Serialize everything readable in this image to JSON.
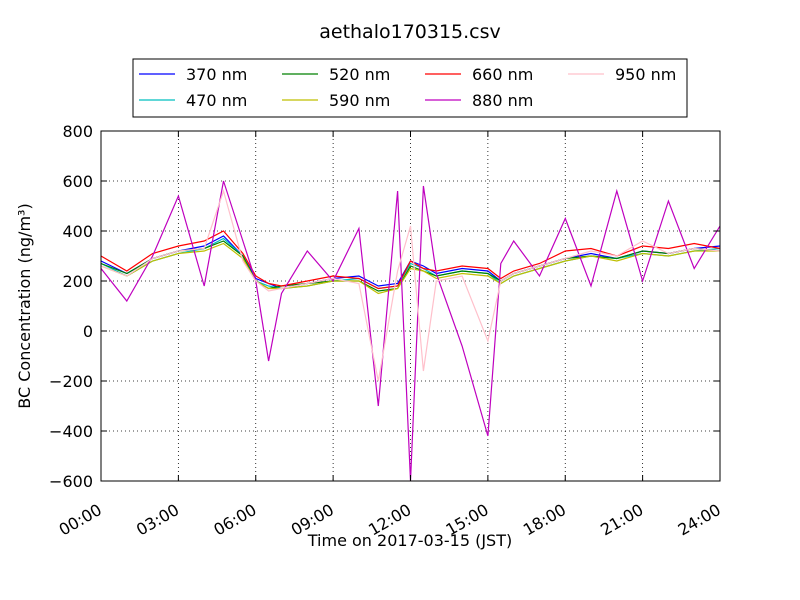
{
  "chart_data": {
    "type": "line",
    "title": "aethalo170315.csv",
    "xlabel": "Time on 2017-03-15 (JST)",
    "ylabel": "BC Concentration (ng/m³)",
    "xlim": [
      0,
      24
    ],
    "ylim": [
      -600,
      800
    ],
    "x_tick_values": [
      0,
      3,
      6,
      9,
      12,
      15,
      18,
      21,
      24
    ],
    "x_tick_labels": [
      "00:00",
      "03:00",
      "06:00",
      "09:00",
      "12:00",
      "15:00",
      "18:00",
      "21:00",
      "24:00"
    ],
    "y_ticks": [
      -600,
      -400,
      -200,
      0,
      200,
      400,
      600,
      800
    ],
    "y_tick_labels": [
      "−600",
      "−400",
      "−200",
      "0",
      "200",
      "400",
      "600",
      "800"
    ],
    "grid": true,
    "legend_placement": "top-center, above plot",
    "x_hours": [
      0,
      1,
      2,
      3,
      4,
      4.75,
      5.5,
      6,
      6.5,
      7,
      8,
      9,
      10,
      10.75,
      11.5,
      12,
      12.5,
      13,
      14,
      15,
      15.5,
      16,
      17,
      18,
      19,
      20,
      21,
      22,
      23,
      24
    ],
    "series": [
      {
        "name": "370 nm",
        "color": "#0000ff",
        "values": [
          280,
          230,
          290,
          320,
          340,
          380,
          300,
          210,
          190,
          170,
          190,
          210,
          220,
          180,
          190,
          280,
          260,
          230,
          250,
          240,
          200,
          230,
          260,
          290,
          310,
          290,
          320,
          310,
          330,
          340
        ]
      },
      {
        "name": "470 nm",
        "color": "#00bfbf",
        "values": [
          270,
          220,
          280,
          310,
          330,
          370,
          300,
          200,
          180,
          170,
          180,
          200,
          210,
          170,
          180,
          270,
          250,
          220,
          240,
          230,
          190,
          220,
          250,
          280,
          300,
          290,
          310,
          300,
          320,
          330
        ]
      },
      {
        "name": "520 nm",
        "color": "#008000",
        "values": [
          270,
          230,
          290,
          320,
          330,
          360,
          300,
          200,
          170,
          180,
          190,
          200,
          200,
          160,
          170,
          260,
          240,
          220,
          240,
          230,
          200,
          230,
          260,
          290,
          300,
          290,
          320,
          310,
          330,
          320
        ]
      },
      {
        "name": "590 nm",
        "color": "#bfbf00",
        "values": [
          260,
          220,
          280,
          310,
          320,
          350,
          290,
          200,
          170,
          170,
          180,
          200,
          200,
          150,
          170,
          250,
          240,
          210,
          230,
          220,
          190,
          220,
          250,
          280,
          300,
          280,
          310,
          300,
          320,
          320
        ]
      },
      {
        "name": "660 nm",
        "color": "#ff0000",
        "values": [
          300,
          240,
          310,
          340,
          360,
          400,
          310,
          220,
          190,
          180,
          200,
          220,
          210,
          170,
          180,
          280,
          250,
          240,
          260,
          250,
          210,
          240,
          270,
          320,
          330,
          300,
          340,
          330,
          350,
          330
        ]
      },
      {
        "name": "880 nm",
        "color": "#bf00bf",
        "values": [
          250,
          120,
          300,
          540,
          180,
          600,
          360,
          200,
          -120,
          150,
          320,
          200,
          410,
          -300,
          560,
          -600,
          580,
          230,
          -60,
          -420,
          270,
          360,
          220,
          450,
          180,
          560,
          200,
          520,
          250,
          420
        ]
      },
      {
        "name": "950 nm",
        "color": "#ffc0cb",
        "values": [
          260,
          220,
          290,
          320,
          330,
          560,
          280,
          200,
          160,
          170,
          190,
          210,
          190,
          -200,
          240,
          420,
          -160,
          200,
          220,
          -40,
          200,
          230,
          260,
          290,
          320,
          300,
          360,
          310,
          330,
          320
        ]
      }
    ]
  }
}
